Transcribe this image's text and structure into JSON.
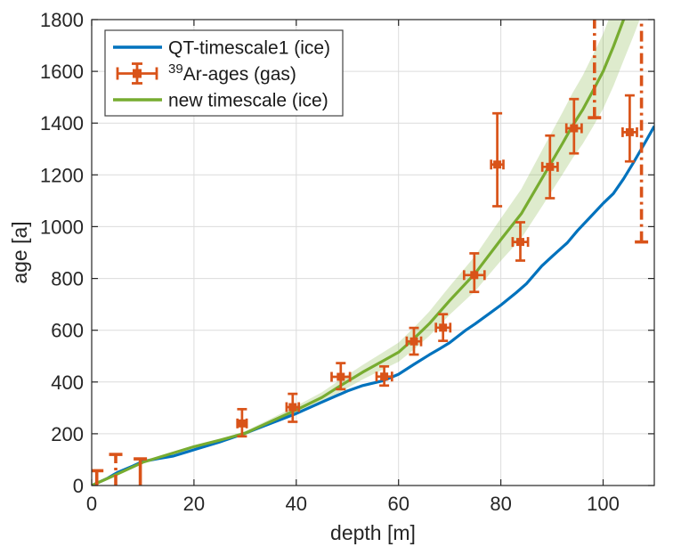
{
  "figure": {
    "background": "#ffffff"
  },
  "chart_data": {
    "type": "line",
    "title": "",
    "xlabel": "depth [m]",
    "ylabel": "age [a]",
    "xlim": [
      0,
      110
    ],
    "ylim": [
      0,
      1800
    ],
    "xticks": [
      0,
      20,
      40,
      60,
      80,
      100
    ],
    "yticks": [
      0,
      200,
      400,
      600,
      800,
      1000,
      1200,
      1400,
      1600,
      1800
    ],
    "grid": true,
    "colors": {
      "blue": "#0072BD",
      "orange": "#D95319",
      "green": "#77AC30",
      "band_fill": "#77AC30",
      "band_opacity": 0.24,
      "axis": "#262626",
      "grid": "#DCDCDC",
      "text": "#262626",
      "legend_edge": "#424242"
    },
    "legend": {
      "position": "top-left",
      "entries": [
        {
          "label": "QT-timescale1 (ice)",
          "type": "line",
          "series": "qt_timescale1",
          "color": "#0072BD"
        },
        {
          "label": "39Ar-ages (gas)",
          "label_sup": "39",
          "label_main": "Ar-ages (gas)",
          "type": "errorbar",
          "series": "ar39_ages",
          "color": "#D95319"
        },
        {
          "label": "new timescale (ice)",
          "type": "line",
          "series": "new_timescale",
          "color": "#77AC30"
        }
      ]
    },
    "series": [
      {
        "name": "QT-timescale1 (ice)",
        "id": "qt_timescale1",
        "type": "line",
        "color": "#0072BD",
        "width": 3.2,
        "points": [
          [
            0,
            0
          ],
          [
            3,
            27
          ],
          [
            5,
            50
          ],
          [
            8,
            75
          ],
          [
            10,
            93
          ],
          [
            13,
            104
          ],
          [
            16,
            114
          ],
          [
            20,
            138
          ],
          [
            25,
            168
          ],
          [
            30,
            202
          ],
          [
            35,
            240
          ],
          [
            40,
            278
          ],
          [
            45,
            322
          ],
          [
            48,
            348
          ],
          [
            50,
            365
          ],
          [
            53,
            386
          ],
          [
            57,
            405
          ],
          [
            60,
            430
          ],
          [
            63,
            468
          ],
          [
            66,
            505
          ],
          [
            68,
            528
          ],
          [
            70,
            552
          ],
          [
            73,
            598
          ],
          [
            75,
            625
          ],
          [
            78,
            668
          ],
          [
            80,
            697
          ],
          [
            83,
            745
          ],
          [
            85,
            780
          ],
          [
            88,
            848
          ],
          [
            90,
            885
          ],
          [
            93,
            938
          ],
          [
            95,
            985
          ],
          [
            98,
            1048
          ],
          [
            100,
            1090
          ],
          [
            102,
            1128
          ],
          [
            104,
            1185
          ],
          [
            106,
            1250
          ],
          [
            108,
            1318
          ],
          [
            110,
            1388
          ]
        ]
      },
      {
        "name": "new timescale (ice)",
        "id": "new_timescale",
        "type": "line",
        "color": "#77AC30",
        "width": 3.2,
        "points": [
          [
            0,
            0
          ],
          [
            5,
            44
          ],
          [
            10,
            90
          ],
          [
            15,
            120
          ],
          [
            20,
            150
          ],
          [
            25,
            175
          ],
          [
            30,
            202
          ],
          [
            35,
            247
          ],
          [
            40,
            292
          ],
          [
            45,
            340
          ],
          [
            49,
            390
          ],
          [
            53,
            438
          ],
          [
            57,
            482
          ],
          [
            60,
            515
          ],
          [
            63,
            568
          ],
          [
            66,
            625
          ],
          [
            70,
            715
          ],
          [
            75,
            820
          ],
          [
            80,
            950
          ],
          [
            84,
            1050
          ],
          [
            88,
            1185
          ],
          [
            92,
            1320
          ],
          [
            94,
            1390
          ],
          [
            96,
            1452
          ],
          [
            98,
            1525
          ],
          [
            100,
            1600
          ],
          [
            102,
            1695
          ],
          [
            104,
            1800
          ],
          [
            105.5,
            1895
          ]
        ]
      }
    ],
    "confidence_band": [
      {
        "x": 28,
        "lo": 186,
        "hi": 198
      },
      {
        "x": 30,
        "lo": 194,
        "hi": 210
      },
      {
        "x": 35,
        "lo": 236,
        "hi": 258
      },
      {
        "x": 40,
        "lo": 277,
        "hi": 307
      },
      {
        "x": 45,
        "lo": 320,
        "hi": 360
      },
      {
        "x": 49,
        "lo": 366,
        "hi": 414
      },
      {
        "x": 53,
        "lo": 410,
        "hi": 466
      },
      {
        "x": 57,
        "lo": 449,
        "hi": 515
      },
      {
        "x": 60,
        "lo": 478,
        "hi": 552
      },
      {
        "x": 63,
        "lo": 526,
        "hi": 610
      },
      {
        "x": 66,
        "lo": 578,
        "hi": 672
      },
      {
        "x": 70,
        "lo": 660,
        "hi": 770
      },
      {
        "x": 75,
        "lo": 752,
        "hi": 888
      },
      {
        "x": 80,
        "lo": 868,
        "hi": 1032
      },
      {
        "x": 84,
        "lo": 955,
        "hi": 1145
      },
      {
        "x": 88,
        "lo": 1077,
        "hi": 1293
      },
      {
        "x": 92,
        "lo": 1200,
        "hi": 1440
      },
      {
        "x": 94,
        "lo": 1264,
        "hi": 1516
      },
      {
        "x": 96,
        "lo": 1320,
        "hi": 1584
      },
      {
        "x": 98,
        "lo": 1386,
        "hi": 1664
      },
      {
        "x": 100,
        "lo": 1455,
        "hi": 1745
      },
      {
        "x": 102,
        "lo": 1543,
        "hi": 1847
      },
      {
        "x": 104,
        "lo": 1642,
        "hi": 1958
      },
      {
        "x": 106,
        "lo": 1740,
        "hi": 2070
      },
      {
        "x": 108,
        "lo": 1845,
        "hi": 2190
      },
      {
        "x": 110,
        "lo": 1950,
        "hi": 2310
      }
    ],
    "errorbar_points": [
      {
        "x": 29.4,
        "y": 240,
        "xerr": 0.9,
        "yerr_lo": 50,
        "yerr_hi": 55
      },
      {
        "x": 39.3,
        "y": 303,
        "xerr": 1.2,
        "yerr_lo": 57,
        "yerr_hi": 51
      },
      {
        "x": 48.7,
        "y": 420,
        "xerr": 1.8,
        "yerr_lo": 48,
        "yerr_hi": 53
      },
      {
        "x": 57.2,
        "y": 421,
        "xerr": 1.5,
        "yerr_lo": 35,
        "yerr_hi": 39
      },
      {
        "x": 63.0,
        "y": 557,
        "xerr": 1.4,
        "yerr_lo": 51,
        "yerr_hi": 52
      },
      {
        "x": 68.7,
        "y": 610,
        "xerr": 1.4,
        "yerr_lo": 51,
        "yerr_hi": 52
      },
      {
        "x": 74.8,
        "y": 813,
        "xerr": 2.0,
        "yerr_lo": 65,
        "yerr_hi": 84
      },
      {
        "x": 79.3,
        "y": 1240,
        "xerr": 1.2,
        "yerr_lo": 161,
        "yerr_hi": 198
      },
      {
        "x": 83.8,
        "y": 941,
        "xerr": 1.5,
        "yerr_lo": 72,
        "yerr_hi": 76
      },
      {
        "x": 89.6,
        "y": 1231,
        "xerr": 1.5,
        "yerr_lo": 121,
        "yerr_hi": 121
      },
      {
        "x": 94.3,
        "y": 1380,
        "xerr": 1.5,
        "yerr_lo": 97,
        "yerr_hi": 113
      },
      {
        "x": 105.2,
        "y": 1365,
        "xerr": 1.4,
        "yerr_lo": 113,
        "yerr_hi": 142
      }
    ],
    "range_bars": [
      {
        "x": 1.0,
        "y0": 0,
        "y1": 57,
        "style": "solid",
        "cap": "top"
      },
      {
        "x": 4.7,
        "y0": 0,
        "y1": 120,
        "style": "dashdot",
        "cap": "top"
      },
      {
        "x": 9.5,
        "y0": 0,
        "y1": 103,
        "style": "solid",
        "cap": "top"
      },
      {
        "x": 98.3,
        "y0": 1421,
        "y1": 1810,
        "style": "dashdot",
        "cap": "bottom"
      },
      {
        "x": 107.5,
        "y0": 941,
        "y1": 1810,
        "style": "dashdot",
        "cap": "bottom"
      }
    ]
  }
}
